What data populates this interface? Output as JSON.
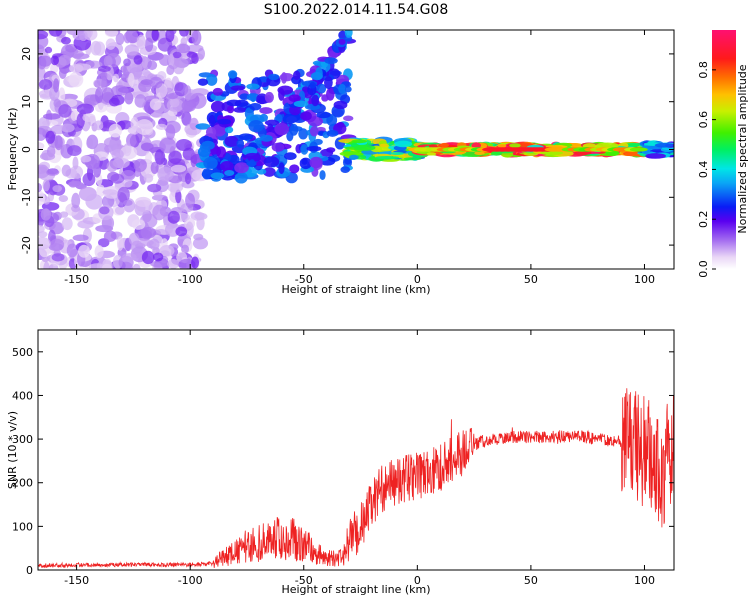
{
  "figure_title": "S100.2022.014.11.54.G08",
  "chart_data": [
    {
      "type": "heatmap",
      "title": "",
      "xlabel": "Height of straight line (km)",
      "ylabel": "Frequency (Hz)",
      "xlim": [
        -167,
        113
      ],
      "ylim": [
        -25,
        25
      ],
      "xticks": [
        -150,
        -100,
        -50,
        0,
        50,
        100
      ],
      "yticks": [
        -20,
        -10,
        0,
        10,
        20
      ],
      "colorbar": {
        "label": "Normalized spectral amplitude",
        "range": [
          0,
          0.96
        ],
        "ticks": [
          0.0,
          0.2,
          0.4,
          0.6,
          0.8
        ]
      },
      "regions": [
        {
          "x_range": [
            -167,
            -95
          ],
          "freq_range": [
            -25,
            25
          ],
          "amplitude": 0.15,
          "description": "scattered noise"
        },
        {
          "x_range": [
            -95,
            -30
          ],
          "freq_range": [
            -6,
            16
          ],
          "amplitude": 0.3
        },
        {
          "x_range": [
            -30,
            0
          ],
          "freq_range": [
            -2,
            2
          ],
          "amplitude": 0.6
        },
        {
          "x_range": [
            0,
            100
          ],
          "freq_range": [
            -1,
            1
          ],
          "amplitude": 0.85
        },
        {
          "x_range": [
            100,
            113
          ],
          "freq_range": [
            -1.5,
            1.5
          ],
          "amplitude": 0.4
        }
      ],
      "grid": false
    },
    {
      "type": "line",
      "title": "",
      "xlabel": "Height of straight line (km)",
      "ylabel": "SNR (10 * v/v)",
      "xlim": [
        -167,
        113
      ],
      "ylim": [
        0,
        550
      ],
      "xticks": [
        -150,
        -100,
        -50,
        0,
        50,
        100
      ],
      "yticks": [
        0,
        100,
        200,
        300,
        400,
        500
      ],
      "line_color": "#ee2222",
      "x": [
        -167,
        -150,
        -130,
        -110,
        -100,
        -90,
        -85,
        -80,
        -75,
        -70,
        -65,
        -60,
        -55,
        -50,
        -45,
        -40,
        -35,
        -32,
        -30,
        -28,
        -25,
        -22,
        -20,
        -18,
        -15,
        -10,
        -5,
        0,
        5,
        10,
        15,
        20,
        25,
        28,
        30,
        35,
        40,
        50,
        60,
        70,
        80,
        90,
        95,
        100,
        105,
        108,
        110,
        113
      ],
      "y": [
        10,
        12,
        12,
        12,
        12,
        15,
        30,
        40,
        55,
        60,
        70,
        75,
        70,
        60,
        40,
        28,
        25,
        35,
        60,
        80,
        100,
        130,
        150,
        170,
        190,
        200,
        210,
        215,
        220,
        235,
        255,
        270,
        285,
        295,
        295,
        300,
        305,
        305,
        305,
        308,
        300,
        295,
        285,
        270,
        250,
        200,
        260,
        280
      ],
      "grid": false
    }
  ]
}
